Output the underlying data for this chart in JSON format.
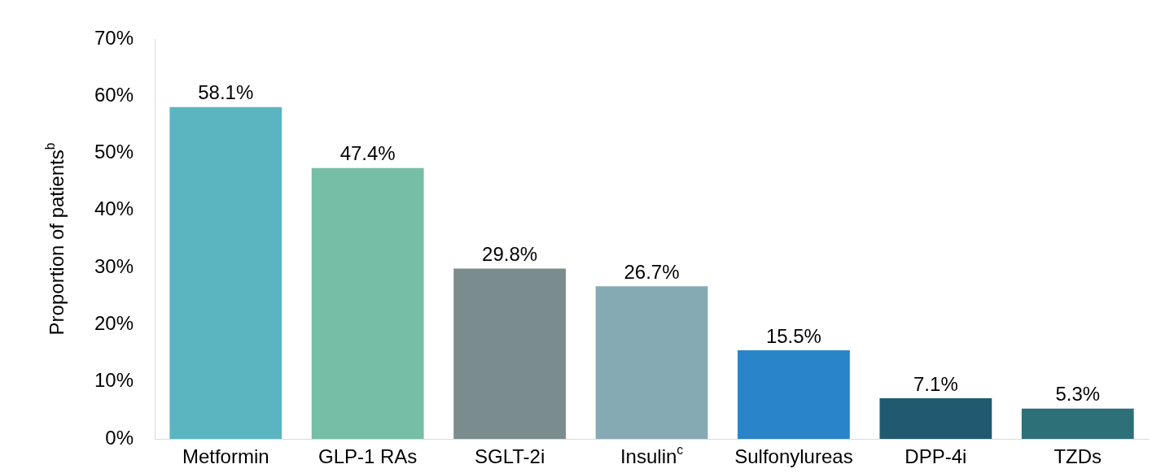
{
  "chart_data": {
    "type": "bar",
    "ylabel": "Proportion of patients$^{b}$",
    "categories": [
      "Metformin",
      "GLP-1 RAs",
      "SGLT-2i",
      "Insulin$^{c}$",
      "Sulfonylureas",
      "DPP-4i",
      "TZDs"
    ],
    "values": [
      58.1,
      47.4,
      29.8,
      26.7,
      15.5,
      7.1,
      5.3
    ],
    "colors": [
      "#5ab5c0",
      "#76bea6",
      "#7a8c8e",
      "#85aab4",
      "#2a84c8",
      "#215a70",
      "#2e7077"
    ],
    "value_labels": [
      "58.1%",
      "47.4%",
      "29.8%",
      "26.7%",
      "15.5%",
      "7.1%",
      "5.3%"
    ],
    "ylim": [
      0,
      70
    ],
    "yticks": [
      {
        "value": 0,
        "label": "0%"
      },
      {
        "value": 10,
        "label": "10%"
      },
      {
        "value": 20,
        "label": "20%"
      },
      {
        "value": 30,
        "label": "30%"
      },
      {
        "value": 40,
        "label": "40%"
      },
      {
        "value": 50,
        "label": "50%"
      },
      {
        "value": 60,
        "label": "60%"
      },
      {
        "value": 70,
        "label": "70%"
      }
    ],
    "grid": false,
    "legend": false
  }
}
